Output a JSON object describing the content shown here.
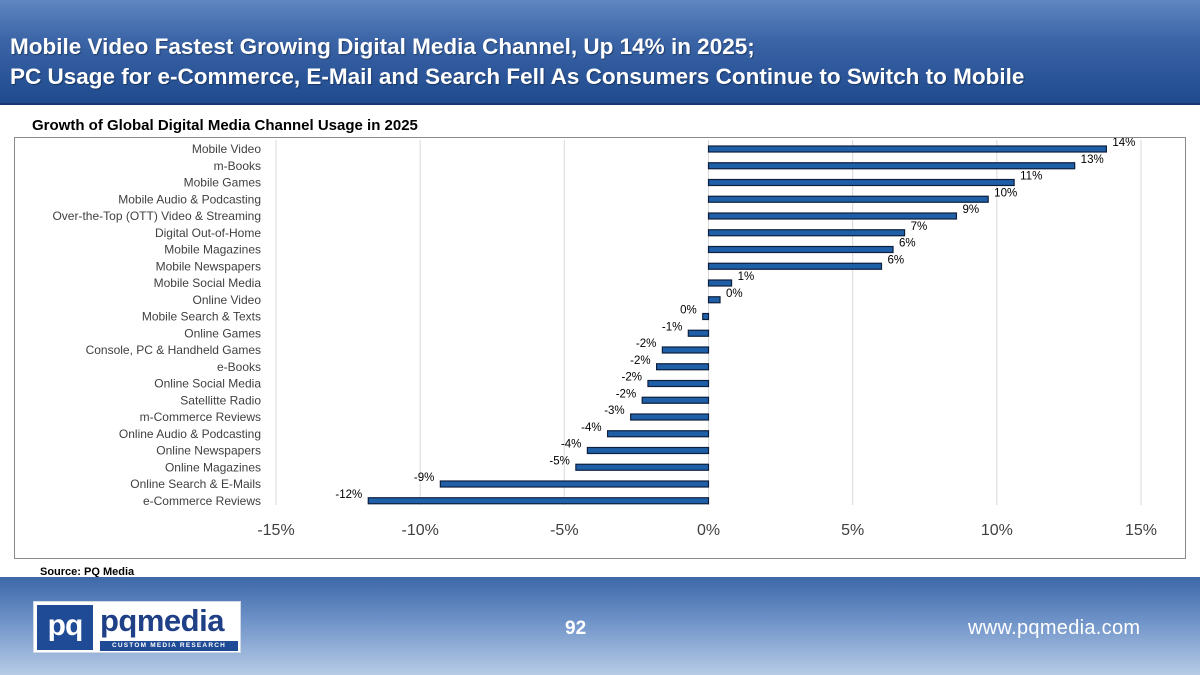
{
  "header": {
    "title_line1": "Mobile Video Fastest Growing Digital Media Channel, Up 14% in 2025;",
    "title_line2": "PC Usage for e-Commerce, E-Mail and Search Fell As Consumers Continue to Switch to Mobile",
    "background_color": "#2f5a9e"
  },
  "chart_data": {
    "type": "bar",
    "orientation": "horizontal",
    "title": "Growth of Global Digital Media Channel Usage in 2025",
    "categories": [
      "Mobile Video",
      "m-Books",
      "Mobile Games",
      "Mobile Audio & Podcasting",
      "Over-the-Top (OTT) Video & Streaming",
      "Digital Out-of-Home",
      "Mobile Magazines",
      "Mobile Newspapers",
      "Mobile Social Media",
      "Online Video",
      "Mobile Search & Texts",
      "Online Games",
      "Console, PC & Handheld Games",
      "e-Books",
      "Online Social Media",
      "Satellitte Radio",
      "m-Commerce Reviews",
      "Online Audio & Podcasting",
      "Online Newspapers",
      "Online Magazines",
      "Online Search & E-Mails",
      "e-Commerce Reviews"
    ],
    "values": [
      13.8,
      12.7,
      10.6,
      9.7,
      8.6,
      6.8,
      6.4,
      6.0,
      0.8,
      0.4,
      -0.2,
      -0.7,
      -1.6,
      -1.8,
      -2.1,
      -2.3,
      -2.7,
      -3.5,
      -4.2,
      -4.6,
      -9.3,
      -11.8
    ],
    "data_labels": [
      "14%",
      "13%",
      "11%",
      "10%",
      "9%",
      "7%",
      "6%",
      "6%",
      "1%",
      "0%",
      "0%",
      "-1%",
      "-2%",
      "-2%",
      "-2%",
      "-2%",
      "-3%",
      "-4%",
      "-4%",
      "-5%",
      "-9%",
      "-12%"
    ],
    "x_ticks": [
      -15,
      -10,
      -5,
      0,
      5,
      10,
      15
    ],
    "x_tick_labels": [
      "-15%",
      "-10%",
      "-5%",
      "0%",
      "5%",
      "10%",
      "15%"
    ],
    "xlim": [
      -15,
      15
    ],
    "xlabel": "",
    "ylabel": "",
    "grid": "vertical",
    "legend": "none",
    "bar_color": "#1f5fa8",
    "bar_outline_color": "#0d1f3c",
    "grid_color": "#d9d9d9"
  },
  "source": "Source: PQ Media",
  "footer": {
    "logo_mark": "pq",
    "logo_wordmark": "pqmedia",
    "logo_tagline": "CUSTOM MEDIA RESEARCH",
    "page_number": "92",
    "website": "www.pqmedia.com"
  }
}
